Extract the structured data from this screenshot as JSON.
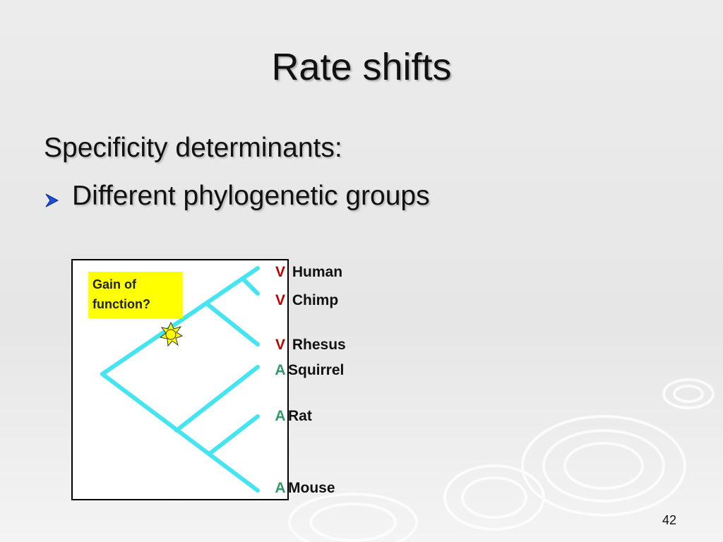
{
  "slide": {
    "title": "Rate shifts",
    "heading": "Specificity determinants:",
    "bullets": [
      "Different phylogenetic groups"
    ],
    "tree": {
      "note": "Gain of function?",
      "leaves": [
        {
          "residue": "V",
          "species": "Human"
        },
        {
          "residue": "V",
          "species": "Chimp"
        },
        {
          "residue": "V",
          "species": "Rhesus"
        },
        {
          "residue": "A",
          "species": "Squirrel"
        },
        {
          "residue": "A",
          "species": "Rat"
        },
        {
          "residue": "A",
          "species": "Mouse"
        }
      ]
    },
    "page_number": "42"
  }
}
